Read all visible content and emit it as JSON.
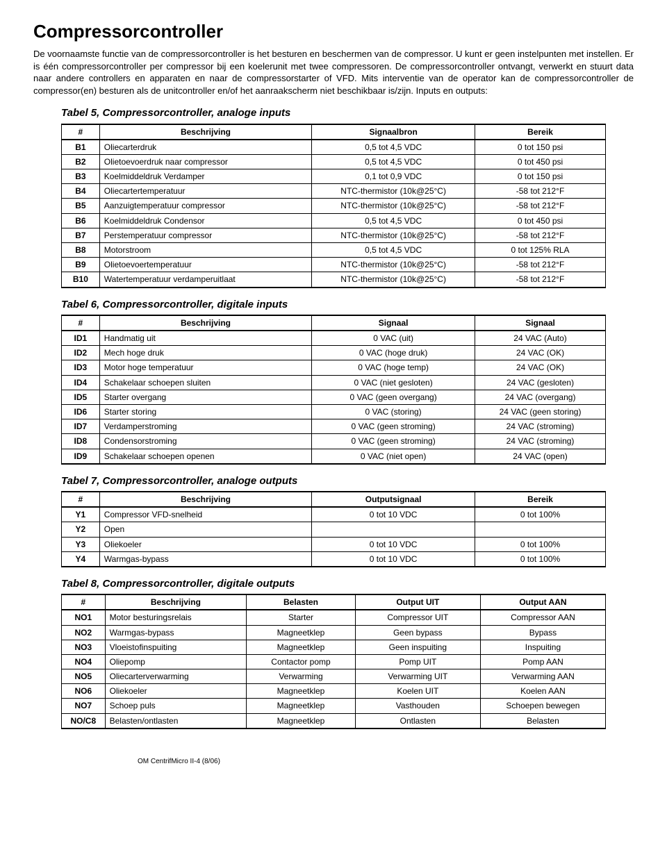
{
  "page": {
    "title": "Compressorcontroller",
    "intro": "De voornaamste functie van de compressorcontroller is het besturen en beschermen van de compressor.  U kunt er geen instelpunten met instellen.  Er is één compressorcontroller per compressor bij een koelerunit met twee compressoren.   De compressorcontroller ontvangt, verwerkt en stuurt data naar andere controllers en apparaten en naar de compressorstarter of VFD. Mits interventie van de operator kan de compressorcontroller de compressor(en) besturen als de unitcontroller en/of het aanraakscherm niet beschikbaar is/zijn. Inputs en outputs:",
    "footer": "OM CentrifMicro II-4 (8/06)"
  },
  "tables": {
    "t5": {
      "title": "Tabel 5, Compressorcontroller, analoge inputs",
      "headers": [
        "#",
        "Beschrijving",
        "Signaalbron",
        "Bereik"
      ],
      "rows": [
        [
          "B1",
          "Oliecarterdruk",
          "0,5 tot 4,5 VDC",
          "0 tot 150 psi"
        ],
        [
          "B2",
          "Olietoevoerdruk naar compressor",
          "0,5 tot 4,5 VDC",
          "0 tot 450 psi"
        ],
        [
          "B3",
          "Koelmiddeldruk Verdamper",
          "0,1 tot 0,9 VDC",
          "0 tot 150 psi"
        ],
        [
          "B4",
          "Oliecartertemperatuur",
          "NTC-thermistor (10k@25°C)",
          "-58 tot 212°F"
        ],
        [
          "B5",
          "Aanzuigtemperatuur compressor",
          "NTC-thermistor (10k@25°C)",
          "-58 tot 212°F"
        ],
        [
          "B6",
          "Koelmiddeldruk Condensor",
          "0,5 tot 4,5 VDC",
          "0 tot 450 psi"
        ],
        [
          "B7",
          "Perstemperatuur compressor",
          "NTC-thermistor (10k@25°C)",
          "-58 tot 212°F"
        ],
        [
          "B8",
          "Motorstroom",
          "0,5 tot 4,5 VDC",
          "0 tot 125% RLA"
        ],
        [
          "B9",
          "Olietoevoertemperatuur",
          "NTC-thermistor (10k@25°C)",
          "-58 tot 212°F"
        ],
        [
          "B10",
          "Watertemperatuur verdamperuitlaat",
          "NTC-thermistor (10k@25°C)",
          "-58 tot 212°F"
        ]
      ],
      "col_align": [
        "c0",
        "",
        "center",
        "center"
      ],
      "col_widths": [
        "7%",
        "39%",
        "30%",
        "24%"
      ]
    },
    "t6": {
      "title": "Tabel 6, Compressorcontroller, digitale inputs",
      "headers": [
        "#",
        "Beschrijving",
        "Signaal",
        "Signaal"
      ],
      "rows": [
        [
          "ID1",
          "Handmatig uit",
          "0 VAC (uit)",
          "24 VAC (Auto)"
        ],
        [
          "ID2",
          "Mech hoge druk",
          "0 VAC (hoge druk)",
          "24 VAC (OK)"
        ],
        [
          "ID3",
          "Motor hoge temperatuur",
          "0 VAC (hoge temp)",
          "24 VAC (OK)"
        ],
        [
          "ID4",
          "Schakelaar schoepen sluiten",
          "0 VAC (niet gesloten)",
          "24 VAC (gesloten)"
        ],
        [
          "ID5",
          "Starter overgang",
          "0 VAC (geen overgang)",
          "24 VAC (overgang)"
        ],
        [
          "ID6",
          "Starter storing",
          "0 VAC (storing)",
          "24 VAC (geen storing)"
        ],
        [
          "ID7",
          "Verdamperstroming",
          "0 VAC (geen stroming)",
          "24 VAC (stroming)"
        ],
        [
          "ID8",
          "Condensorstroming",
          "0 VAC (geen stroming)",
          "24 VAC (stroming)"
        ],
        [
          "ID9",
          "Schakelaar schoepen openen",
          "0 VAC (niet open)",
          "24 VAC (open)"
        ]
      ],
      "col_align": [
        "c0",
        "",
        "center",
        "center"
      ],
      "col_widths": [
        "7%",
        "39%",
        "30%",
        "24%"
      ]
    },
    "t7": {
      "title": "Tabel 7, Compressorcontroller, analoge outputs",
      "headers": [
        "#",
        "Beschrijving",
        "Outputsignaal",
        "Bereik"
      ],
      "rows": [
        [
          "Y1",
          "Compressor VFD-snelheid",
          "0 tot 10 VDC",
          "0 tot 100%"
        ],
        [
          "Y2",
          "Open",
          "",
          ""
        ],
        [
          "Y3",
          "Oliekoeler",
          "0 tot 10 VDC",
          "0 tot 100%"
        ],
        [
          "Y4",
          "Warmgas-bypass",
          "0 tot 10 VDC",
          "0 tot 100%"
        ]
      ],
      "col_align": [
        "c0",
        "",
        "center",
        "center"
      ],
      "col_widths": [
        "7%",
        "39%",
        "30%",
        "24%"
      ]
    },
    "t8": {
      "title": "Tabel 8, Compressorcontroller, digitale outputs",
      "headers": [
        "#",
        "Beschrijving",
        "Belasten",
        "Output UIT",
        "Output AAN"
      ],
      "rows": [
        [
          "NO1",
          "Motor besturingsrelais",
          "Starter",
          "Compressor UIT",
          "Compressor AAN"
        ],
        [
          "NO2",
          "Warmgas-bypass",
          "Magneetklep",
          "Geen bypass",
          "Bypass"
        ],
        [
          "NO3",
          "Vloeistofinspuiting",
          "Magneetklep",
          "Geen inspuiting",
          "Inspuiting"
        ],
        [
          "NO4",
          "Oliepomp",
          "Contactor pomp",
          "Pomp UIT",
          "Pomp AAN"
        ],
        [
          "NO5",
          "Oliecarterverwarming",
          "Verwarming",
          "Verwarming UIT",
          "Verwarming AAN"
        ],
        [
          "NO6",
          "Oliekoeler",
          "Magneetklep",
          "Koelen UIT",
          "Koelen AAN"
        ],
        [
          "NO7",
          "Schoep puls",
          "Magneetklep",
          "Vasthouden",
          "Schoepen bewegen"
        ],
        [
          "NO/C8",
          "Belasten/ontlasten",
          "Magneetklep",
          "Ontlasten",
          "Belasten"
        ]
      ],
      "col_align": [
        "c0",
        "",
        "center",
        "center",
        "center"
      ],
      "col_widths": [
        "8%",
        "26%",
        "20%",
        "23%",
        "23%"
      ]
    }
  }
}
